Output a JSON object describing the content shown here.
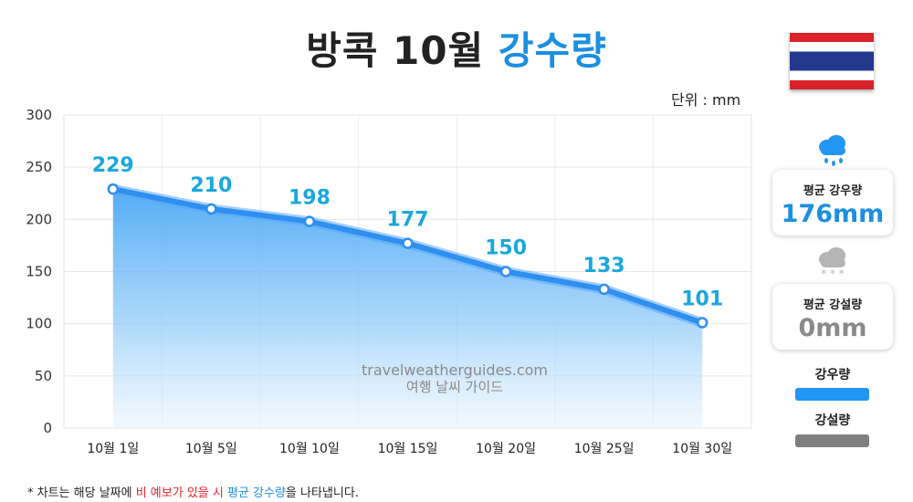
{
  "title": {
    "main": "방콕 10월",
    "accent": "강수량"
  },
  "unit_label": "단위 : mm",
  "watermark": {
    "line1": "travelweatherguides.com",
    "line2": "여행 날씨 가이드"
  },
  "cards": {
    "rain": {
      "label": "평균 강우량",
      "value": "176mm",
      "icon": "rain-cloud-icon",
      "color": "#1b8fe0"
    },
    "snow": {
      "label": "평균 강설량",
      "value": "0mm",
      "icon": "snow-cloud-icon",
      "color": "#8a8a8a"
    }
  },
  "legend": [
    {
      "label": "강우량",
      "color": "#2196f3"
    },
    {
      "label": "강설량",
      "color": "#808080"
    }
  ],
  "footnote": {
    "prefix": "* 차트는 해당 날짜에 ",
    "red": "비 예보가 있을 시",
    "mid": " ",
    "blue": "평균 강수량",
    "suffix": "을 나타냅니다."
  },
  "colors": {
    "accent": "#1b8fe0",
    "line": "#2f8ff0",
    "label": "#1aa7dd",
    "flag_red": "#d9222a",
    "flag_blue": "#243a8f"
  },
  "chart_data": {
    "type": "area",
    "categories": [
      "10월 1일",
      "10월 5일",
      "10월 10일",
      "10월 15일",
      "10월 20일",
      "10월 25일",
      "10월 30일"
    ],
    "series": [
      {
        "values": [
          229,
          210,
          198,
          177,
          150,
          133,
          101
        ]
      }
    ],
    "data_labels": [
      "229",
      "210",
      "198",
      "177",
      "150",
      "133",
      "101"
    ],
    "yticks": [
      "0",
      "50",
      "100",
      "150",
      "200",
      "250",
      "300"
    ],
    "ylim": [
      0,
      300
    ],
    "grid": true
  }
}
